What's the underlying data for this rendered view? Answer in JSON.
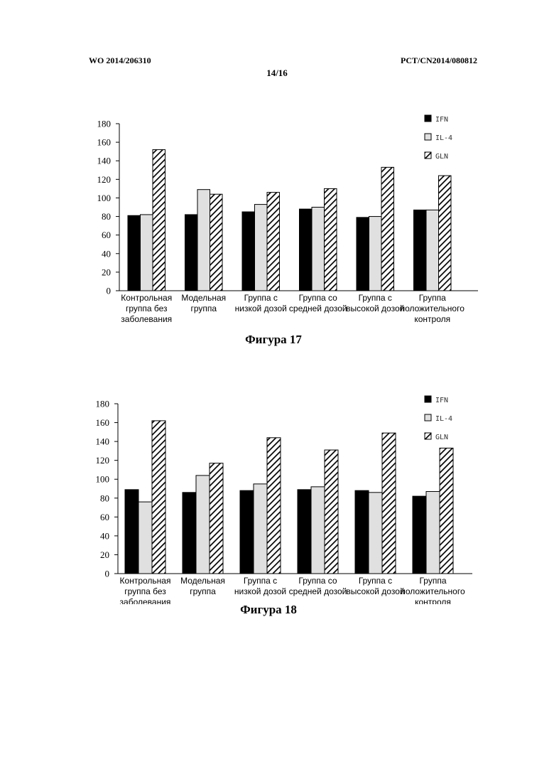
{
  "header": {
    "left": "WO 2014/206310",
    "right": "PCT/CN2014/080812",
    "page": "14/16"
  },
  "figures": [
    {
      "caption": "Фигура 17"
    },
    {
      "caption": "Фигура 18"
    }
  ],
  "chart_data": [
    {
      "type": "bar",
      "title": "",
      "xlabel": "",
      "ylabel": "",
      "ylim": [
        0,
        180
      ],
      "yticks": [
        0,
        20,
        40,
        60,
        80,
        100,
        120,
        140,
        160,
        180
      ],
      "legend_position": "top-right",
      "categories": [
        [
          "Контрольная",
          "группа без",
          "заболевания"
        ],
        [
          "Модельная",
          "группа"
        ],
        [
          "Группа с",
          "низкой дозой"
        ],
        [
          "Группа со",
          "средней дозой"
        ],
        [
          "Группа с",
          "высокой дозой"
        ],
        [
          "Группа",
          "положительного",
          "контроля"
        ]
      ],
      "series": [
        {
          "name": "IFN",
          "fill": "#000000",
          "values": [
            81,
            82,
            85,
            88,
            79,
            87
          ]
        },
        {
          "name": "IL-4",
          "fill": "#e0e0e0",
          "values": [
            82,
            109,
            93,
            90,
            80,
            87
          ]
        },
        {
          "name": "GLN",
          "fill": "hatch",
          "values": [
            152,
            104,
            106,
            110,
            133,
            124
          ]
        }
      ]
    },
    {
      "type": "bar",
      "title": "",
      "xlabel": "",
      "ylabel": "",
      "ylim": [
        0,
        180
      ],
      "yticks": [
        0,
        20,
        40,
        60,
        80,
        100,
        120,
        140,
        160,
        180
      ],
      "legend_position": "top-right",
      "categories": [
        [
          "Контрольная",
          "группа без",
          "заболевания"
        ],
        [
          "Модельная",
          "группа"
        ],
        [
          "Группа с",
          "низкой дозой"
        ],
        [
          "Группа со",
          "средней дозой"
        ],
        [
          "Группа с",
          "высокой дозой"
        ],
        [
          "Группа",
          "положительного",
          "контроля"
        ]
      ],
      "series": [
        {
          "name": "IFN",
          "fill": "#000000",
          "values": [
            89,
            86,
            88,
            89,
            88,
            82
          ]
        },
        {
          "name": "IL-4",
          "fill": "#e0e0e0",
          "values": [
            76,
            104,
            95,
            92,
            86,
            87
          ]
        },
        {
          "name": "GLN",
          "fill": "hatch",
          "values": [
            162,
            117,
            144,
            131,
            149,
            133
          ]
        }
      ]
    }
  ]
}
